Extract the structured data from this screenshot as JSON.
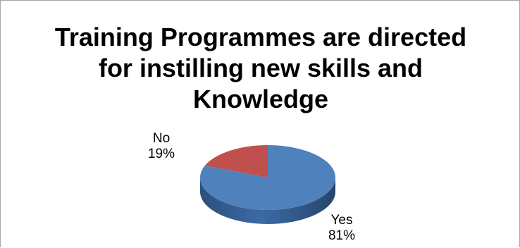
{
  "chart_data": {
    "type": "pie",
    "title_lines": [
      "Training Programmes are directed",
      "for instilling new skills and",
      "Knowledge"
    ],
    "slices": [
      {
        "label": "Yes",
        "value": 81,
        "value_label": "81%",
        "color": "#4f81bd",
        "side_color": "#3c6aa5"
      },
      {
        "label": "No",
        "value": 19,
        "value_label": "19%",
        "color": "#c0504d",
        "side_color": "#9e3b39"
      }
    ],
    "style": "3d",
    "legend": "none"
  }
}
